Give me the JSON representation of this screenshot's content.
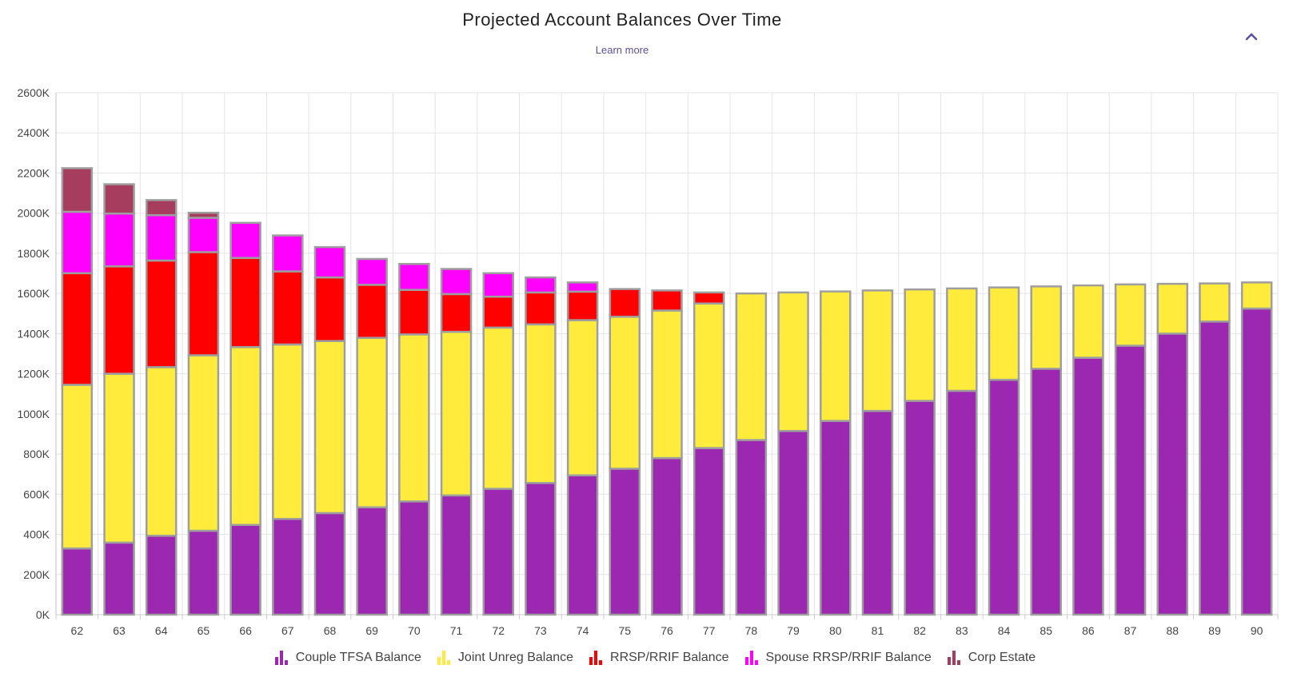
{
  "header": {
    "title": "Projected Account Balances Over Time",
    "learn_more": "Learn more",
    "collapse_icon": "chevron-up-icon",
    "accent_color": "#5e4ea0"
  },
  "chart_data": {
    "type": "bar",
    "stacked": true,
    "title": "Projected Account Balances Over Time",
    "xlabel": "",
    "ylabel": "",
    "ylim": [
      0,
      2600
    ],
    "y_unit_suffix": "K",
    "y_ticks": [
      "0K",
      "200K",
      "400K",
      "600K",
      "800K",
      "1000K",
      "1200K",
      "1400K",
      "1600K",
      "1800K",
      "2000K",
      "2200K",
      "2400K",
      "2600K"
    ],
    "grid": true,
    "legend_position": "bottom",
    "segment_border_color": "#9e9e9e",
    "categories": [
      "62",
      "63",
      "64",
      "65",
      "66",
      "67",
      "68",
      "69",
      "70",
      "71",
      "72",
      "73",
      "74",
      "75",
      "76",
      "77",
      "78",
      "79",
      "80",
      "81",
      "82",
      "83",
      "84",
      "85",
      "86",
      "87",
      "88",
      "89",
      "90"
    ],
    "series": [
      {
        "name": "Couple TFSA Balance",
        "color": "#9c27b0",
        "values": [
          330,
          359,
          393,
          418,
          447,
          477,
          506,
          535,
          564,
          594,
          627,
          656,
          694,
          727,
          780,
          830,
          870,
          915,
          965,
          1015,
          1065,
          1115,
          1170,
          1225,
          1280,
          1340,
          1400,
          1460,
          1525
        ]
      },
      {
        "name": "Joint Unreg Balance",
        "color": "#ffeb3b",
        "values": [
          815,
          841,
          840,
          874,
          886,
          869,
          857,
          844,
          832,
          815,
          803,
          790,
          773,
          757,
          735,
          720,
          730,
          690,
          645,
          600,
          555,
          510,
          460,
          410,
          360,
          305,
          248,
          190,
          130
        ]
      },
      {
        "name": "RRSP/RRIF Balance",
        "color": "#ff0000",
        "values": [
          556,
          535,
          531,
          514,
          444,
          364,
          317,
          264,
          222,
          188,
          154,
          159,
          142,
          138,
          100,
          55,
          0,
          0,
          0,
          0,
          0,
          0,
          0,
          0,
          0,
          0,
          0,
          0,
          0
        ]
      },
      {
        "name": "Spouse RRSP/RRIF Balance",
        "color": "#ff00ff",
        "values": [
          306,
          263,
          226,
          171,
          175,
          179,
          151,
          129,
          129,
          125,
          117,
          75,
          46,
          0,
          0,
          0,
          0,
          0,
          0,
          0,
          0,
          0,
          0,
          0,
          0,
          0,
          0,
          0,
          0
        ]
      },
      {
        "name": "Corp Estate",
        "color": "#a63d5e",
        "values": [
          217,
          146,
          75,
          25,
          0,
          0,
          0,
          0,
          0,
          0,
          0,
          0,
          0,
          0,
          0,
          0,
          0,
          0,
          0,
          0,
          0,
          0,
          0,
          0,
          0,
          0,
          0,
          0,
          0
        ]
      }
    ]
  }
}
